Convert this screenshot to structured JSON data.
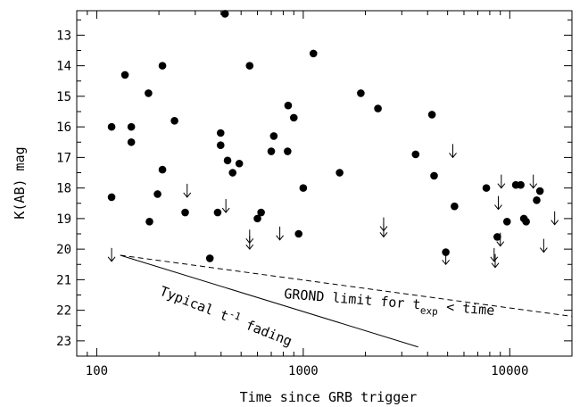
{
  "chart_data": {
    "type": "scatter",
    "xlabel": "Time since GRB trigger",
    "ylabel": "K(AB) mag",
    "x_scale": "log",
    "xlim": [
      80,
      20000
    ],
    "ylim": [
      23.5,
      12.2
    ],
    "x_ticks": [
      100,
      1000,
      10000
    ],
    "x_tick_labels": [
      "100",
      "1000",
      "10000"
    ],
    "y_ticks": [
      13,
      14,
      15,
      16,
      17,
      18,
      19,
      20,
      21,
      22,
      23
    ],
    "y_tick_labels": [
      "13",
      "14",
      "15",
      "16",
      "17",
      "18",
      "19",
      "20",
      "21",
      "22",
      "23"
    ],
    "grid": false,
    "series": [
      {
        "marker": "filled-circle",
        "points": [
          {
            "x": 118,
            "y": 16.0
          },
          {
            "x": 118,
            "y": 18.3
          },
          {
            "x": 137,
            "y": 14.3
          },
          {
            "x": 147,
            "y": 16.0
          },
          {
            "x": 147,
            "y": 16.5
          },
          {
            "x": 178,
            "y": 14.9
          },
          {
            "x": 180,
            "y": 19.1
          },
          {
            "x": 197,
            "y": 18.2
          },
          {
            "x": 208,
            "y": 14.0
          },
          {
            "x": 208,
            "y": 17.4
          },
          {
            "x": 238,
            "y": 15.8
          },
          {
            "x": 268,
            "y": 18.8
          },
          {
            "x": 353,
            "y": 20.3
          },
          {
            "x": 385,
            "y": 18.8
          },
          {
            "x": 398,
            "y": 16.2
          },
          {
            "x": 398,
            "y": 16.6
          },
          {
            "x": 418,
            "y": 12.3
          },
          {
            "x": 430,
            "y": 17.1
          },
          {
            "x": 455,
            "y": 17.5
          },
          {
            "x": 490,
            "y": 17.2
          },
          {
            "x": 550,
            "y": 14.0
          },
          {
            "x": 600,
            "y": 19.0
          },
          {
            "x": 625,
            "y": 18.8
          },
          {
            "x": 700,
            "y": 16.8
          },
          {
            "x": 720,
            "y": 16.3
          },
          {
            "x": 840,
            "y": 16.8
          },
          {
            "x": 845,
            "y": 15.3
          },
          {
            "x": 900,
            "y": 15.7
          },
          {
            "x": 950,
            "y": 19.5
          },
          {
            "x": 1000,
            "y": 18.0
          },
          {
            "x": 1120,
            "y": 13.6
          },
          {
            "x": 1500,
            "y": 17.5
          },
          {
            "x": 1900,
            "y": 14.9
          },
          {
            "x": 2300,
            "y": 15.4
          },
          {
            "x": 3500,
            "y": 16.9
          },
          {
            "x": 4200,
            "y": 15.6
          },
          {
            "x": 4300,
            "y": 17.6
          },
          {
            "x": 4900,
            "y": 20.1
          },
          {
            "x": 5400,
            "y": 18.6
          },
          {
            "x": 7700,
            "y": 18.0
          },
          {
            "x": 8700,
            "y": 19.6
          },
          {
            "x": 9700,
            "y": 19.1
          },
          {
            "x": 10700,
            "y": 17.9
          },
          {
            "x": 11300,
            "y": 17.9
          },
          {
            "x": 11700,
            "y": 19.0
          },
          {
            "x": 12000,
            "y": 19.1
          },
          {
            "x": 13500,
            "y": 18.4
          },
          {
            "x": 14000,
            "y": 18.1
          }
        ]
      },
      {
        "marker": "down-arrow",
        "points": [
          {
            "x": 118,
            "y": 20.4
          },
          {
            "x": 274,
            "y": 18.3
          },
          {
            "x": 422,
            "y": 18.8
          },
          {
            "x": 550,
            "y": 19.8
          },
          {
            "x": 550,
            "y": 20.0
          },
          {
            "x": 770,
            "y": 19.7
          },
          {
            "x": 2450,
            "y": 19.4
          },
          {
            "x": 2450,
            "y": 19.6
          },
          {
            "x": 4900,
            "y": 20.5
          },
          {
            "x": 5300,
            "y": 17.0
          },
          {
            "x": 8400,
            "y": 20.4
          },
          {
            "x": 8500,
            "y": 20.6
          },
          {
            "x": 8800,
            "y": 18.7
          },
          {
            "x": 9000,
            "y": 19.9
          },
          {
            "x": 9100,
            "y": 18.0
          },
          {
            "x": 13000,
            "y": 18.0
          },
          {
            "x": 14600,
            "y": 20.1
          },
          {
            "x": 16500,
            "y": 19.2
          }
        ]
      }
    ],
    "lines": [
      {
        "style": "dashed",
        "label": "GROND limit for t_exp < time",
        "points": [
          {
            "x": 130,
            "y": 20.2
          },
          {
            "x": 20000,
            "y": 22.2
          }
        ]
      },
      {
        "style": "solid",
        "label": "Typical t^-1 fading",
        "points": [
          {
            "x": 130,
            "y": 20.2
          },
          {
            "x": 3600,
            "y": 23.2
          }
        ]
      }
    ],
    "annotations": {
      "typical_pre": "Typical t",
      "typical_sup": "-1",
      "typical_post": " fading",
      "grond_pre": "GROND limit for t",
      "grond_sub": "exp",
      "grond_post": " < time"
    }
  }
}
